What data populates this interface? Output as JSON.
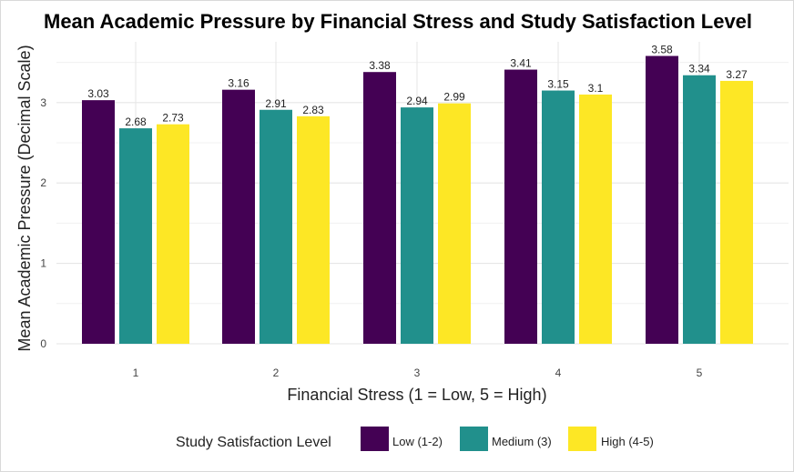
{
  "chart_data": {
    "type": "bar",
    "title": "Mean Academic Pressure by Financial Stress and Study Satisfaction Level",
    "xlabel": "Financial Stress (1 = Low, 5 = High)",
    "ylabel": "Mean Academic Pressure (Decimal Scale)",
    "categories": [
      "1",
      "2",
      "3",
      "4",
      "5"
    ],
    "yticks": [
      "0",
      "1",
      "2",
      "3"
    ],
    "ylim": [
      0,
      3.66
    ],
    "grid": true,
    "legend": {
      "title": "Study Satisfaction Level",
      "position": "bottom"
    },
    "series": [
      {
        "name": "Low (1-2)",
        "color": "#440154",
        "values": [
          3.03,
          3.16,
          3.38,
          3.41,
          3.58
        ],
        "labels": [
          "3.03",
          "3.16",
          "3.38",
          "3.41",
          "3.58"
        ]
      },
      {
        "name": "Medium (3)",
        "color": "#21908C",
        "values": [
          2.68,
          2.91,
          2.94,
          3.15,
          3.34
        ],
        "labels": [
          "2.68",
          "2.91",
          "2.94",
          "3.15",
          "3.34"
        ]
      },
      {
        "name": "High (4-5)",
        "color": "#FDE725",
        "values": [
          2.73,
          2.83,
          2.99,
          3.1,
          3.27
        ],
        "labels": [
          "2.73",
          "2.83",
          "2.99",
          "3.1",
          "3.27"
        ]
      }
    ]
  }
}
